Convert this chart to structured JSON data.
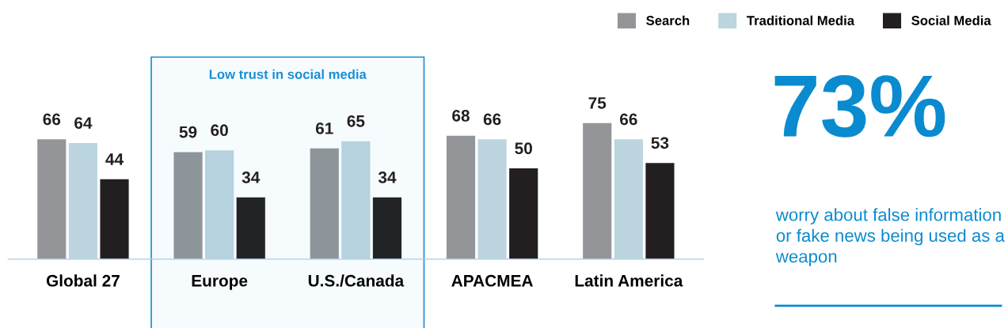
{
  "chart_data": [
    {
      "type": "bar",
      "categories": [
        "Global 27",
        "Europe",
        "U.S./Canada",
        "APACMEA",
        "Latin America"
      ],
      "series": [
        {
          "name": "Search",
          "color": "#939598",
          "values": [
            66,
            59,
            61,
            68,
            75
          ]
        },
        {
          "name": "Traditional Media",
          "color": "#bcd5df",
          "values": [
            64,
            60,
            65,
            66,
            66
          ]
        },
        {
          "name": "Social Media",
          "color": "#231f20",
          "values": [
            44,
            34,
            34,
            50,
            53
          ]
        }
      ],
      "data_labels": true,
      "legend": "top right",
      "bands": [
        {
          "axis": "x",
          "from": "Europe",
          "to": "U.S./Canada",
          "label": "Low trust in social media",
          "color": "#1a8fd6"
        }
      ]
    },
    {
      "type": "other",
      "title": "73%",
      "annotations": [
        "worry about false information or fake news being used as a weapon"
      ]
    }
  ]
}
